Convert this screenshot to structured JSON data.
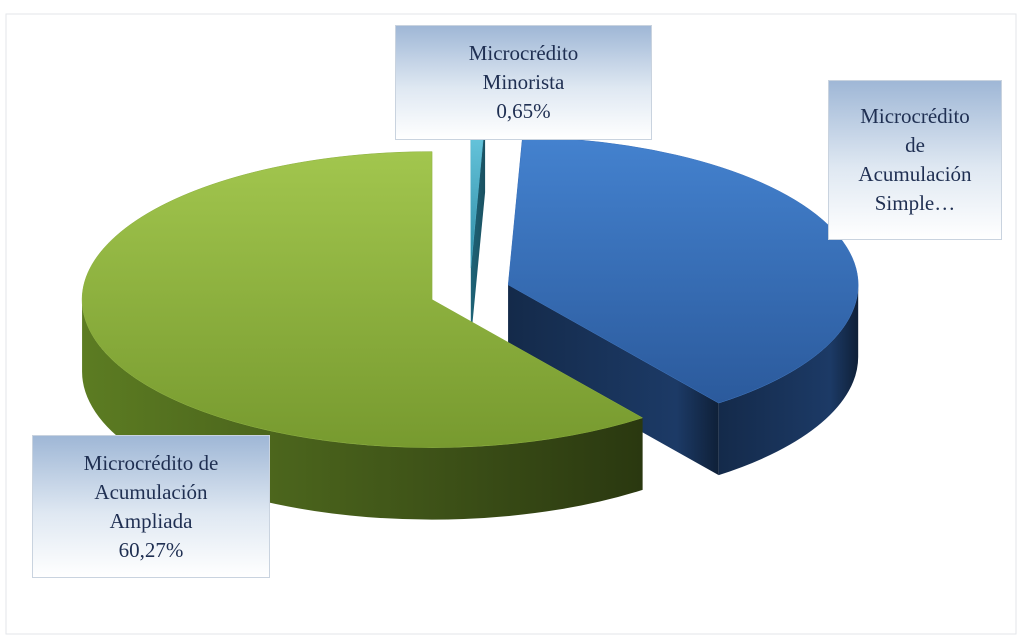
{
  "chart_data": {
    "type": "pie",
    "categories": [
      "Microcrédito Minorista",
      "Microcrédito de Acumulación Simple…",
      "Microcrédito de Acumulación Ampliada"
    ],
    "values": [
      0.65,
      39.08,
      60.27
    ],
    "value_labels": [
      "0,65%",
      null,
      "60,27%"
    ],
    "colors": [
      "#4bacc6",
      "#3a72bd",
      "#8cb03e"
    ],
    "start_angle": 0,
    "exploded": true
  }
}
